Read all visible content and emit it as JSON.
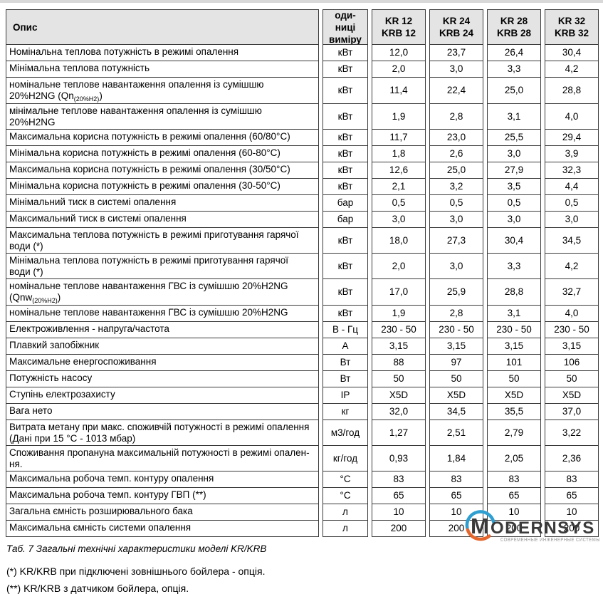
{
  "table": {
    "header": {
      "desc": "Опис",
      "units": "оди-\nниці\nвиміру",
      "models": [
        "KR 12\nKRB 12",
        "KR 24\nKRB 24",
        "KR 28\nKRB 28",
        "KR 32\nKRB 32"
      ]
    },
    "rows": [
      {
        "label": [
          "Номінальна теплова потужність в режимі опалення"
        ],
        "unit": "кВт",
        "values": [
          "12,0",
          "23,7",
          "26,4",
          "30,4"
        ]
      },
      {
        "label": [
          "Мінімальна теплова потужність"
        ],
        "unit": "кВт",
        "values": [
          "2,0",
          "3,0",
          "3,3",
          "4,2"
        ]
      },
      {
        "label": [
          "номінальне теплове навантаження опалення із сумішшю",
          {
            "br": true
          },
          "20%H2NG (Qn",
          {
            "sub": "(20%H2)"
          },
          ")"
        ],
        "unit": "кВт",
        "values": [
          "11,4",
          "22,4",
          "25,0",
          "28,8"
        ]
      },
      {
        "label": [
          "мінімальне теплове навантаження опалення із сумішшю",
          {
            "br": true
          },
          "20%H2NG"
        ],
        "unit": "кВт",
        "values": [
          "1,9",
          "2,8",
          "3,1",
          "4,0"
        ]
      },
      {
        "label": [
          "Максимальна корисна потужність в режимі опалення (60/80°С)"
        ],
        "unit": "кВт",
        "values": [
          "11,7",
          "23,0",
          "25,5",
          "29,4"
        ]
      },
      {
        "label": [
          "Мінімальна корисна потужність в режимі опалення (60-80°С)"
        ],
        "unit": "кВт",
        "values": [
          "1,8",
          "2,6",
          "3,0",
          "3,9"
        ]
      },
      {
        "label": [
          "Максимальна корисна потужність в режимі опалення (30/50°С)"
        ],
        "unit": "кВт",
        "values": [
          "12,6",
          "25,0",
          "27,9",
          "32,3"
        ]
      },
      {
        "label": [
          "Мінімальна корисна потужність в режимі опалення (30-50°С)"
        ],
        "unit": "кВт",
        "values": [
          "2,1",
          "3,2",
          "3,5",
          "4,4"
        ]
      },
      {
        "label": [
          "Мінімальний тиск в системі опалення"
        ],
        "unit": "бар",
        "values": [
          "0,5",
          "0,5",
          "0,5",
          "0,5"
        ]
      },
      {
        "label": [
          "Максимальний тиск в системі опалення"
        ],
        "unit": "бар",
        "values": [
          "3,0",
          "3,0",
          "3,0",
          "3,0"
        ]
      },
      {
        "label": [
          "Максимальна теплова потужність в режимі приготування гарячої",
          {
            "br": true
          },
          "води (*)"
        ],
        "unit": "кВт",
        "values": [
          "18,0",
          "27,3",
          "30,4",
          "34,5"
        ]
      },
      {
        "label": [
          "Мінімальна теплова потужність в режимі приготування гарячої",
          {
            "br": true
          },
          "води (*)"
        ],
        "unit": "кВт",
        "values": [
          "2,0",
          "3,0",
          "3,3",
          "4,2"
        ]
      },
      {
        "label": [
          "номінальне теплове навантаження ГВС із сумішшю 20%H2NG",
          {
            "br": true
          },
          "(Qnw",
          {
            "sub": "(20%H2)"
          },
          ")"
        ],
        "unit": "кВт",
        "values": [
          "17,0",
          "25,9",
          "28,8",
          "32,7"
        ]
      },
      {
        "label": [
          "номінальне теплове навантаження ГВС із сумішшю 20%H2NG"
        ],
        "unit": "кВт",
        "values": [
          "1,9",
          "2,8",
          "3,1",
          "4,0"
        ]
      },
      {
        "label": [
          "Електроживлення - напруга/частота"
        ],
        "unit": "В - Гц",
        "values": [
          "230 - 50",
          "230 - 50",
          "230 - 50",
          "230 - 50"
        ]
      },
      {
        "label": [
          "Плавкий запобіжник"
        ],
        "unit": "А",
        "values": [
          "3,15",
          "3,15",
          "3,15",
          "3,15"
        ]
      },
      {
        "label": [
          "Максимальне енергоспоживання"
        ],
        "unit": "Вт",
        "values": [
          "88",
          "97",
          "101",
          "106"
        ]
      },
      {
        "label": [
          "Потужність насосу"
        ],
        "unit": "Вт",
        "values": [
          "50",
          "50",
          "50",
          "50"
        ]
      },
      {
        "label": [
          "Ступінь електрозахисту"
        ],
        "unit": "IP",
        "values": [
          "X5D",
          "X5D",
          "X5D",
          "X5D"
        ]
      },
      {
        "label": [
          "Вага нето"
        ],
        "unit": "кг",
        "values": [
          "32,0",
          "34,5",
          "35,5",
          "37,0"
        ]
      },
      {
        "label": [
          "Витрата метану при макс. споживчій потужності в режимі опалення",
          {
            "br": true
          },
          "(Дані при 15 °С - 1013 мбар)"
        ],
        "unit": "м3/год",
        "values": [
          "1,27",
          "2,51",
          "2,79",
          "3,22"
        ]
      },
      {
        "label": [
          "Споживання пропануна максимальній потужності в режимі опален-",
          {
            "br": true
          },
          "ня."
        ],
        "unit": "кг/год",
        "values": [
          "0,93",
          "1,84",
          "2,05",
          "2,36"
        ]
      },
      {
        "label": [
          "Максимальна робоча темп. контуру опалення"
        ],
        "unit": "°С",
        "values": [
          "83",
          "83",
          "83",
          "83"
        ]
      },
      {
        "label": [
          "Максимальна робоча темп. контуру ГВП (**)"
        ],
        "unit": "°С",
        "values": [
          "65",
          "65",
          "65",
          "65"
        ]
      },
      {
        "label": [
          "Загальна ємність розширювального бака"
        ],
        "unit": "л",
        "values": [
          "10",
          "10",
          "10",
          "10"
        ]
      },
      {
        "label": [
          "Максимальна ємність системи опалення"
        ],
        "unit": "л",
        "values": [
          "200",
          "200",
          "200",
          "200"
        ]
      }
    ]
  },
  "caption": "Таб. 7 Загальні технічні характеристики моделі KR/KRB",
  "footnotes": [
    "(*) KR/KRB при підключені зовнішнього бойлера - опція.",
    "(**) KR/KRB з датчиком бойлера, опція."
  ],
  "logo": {
    "brand_first_letter": "M",
    "brand_rest": "ODERNSYS",
    "tagline": "СОВРЕМЕННЫЕ ИНЖЕНЕРНЫЕ СИСТЕМЫ",
    "arc_blue": "#2e9fd0",
    "arc_orange": "#e5672e",
    "text_color": "#3a3a3a",
    "tagline_color": "#9a9a9a"
  },
  "colors": {
    "border": "#3a3a3a",
    "header_bg": "#e4e4e4",
    "top_strip": "#d8d8d8"
  }
}
